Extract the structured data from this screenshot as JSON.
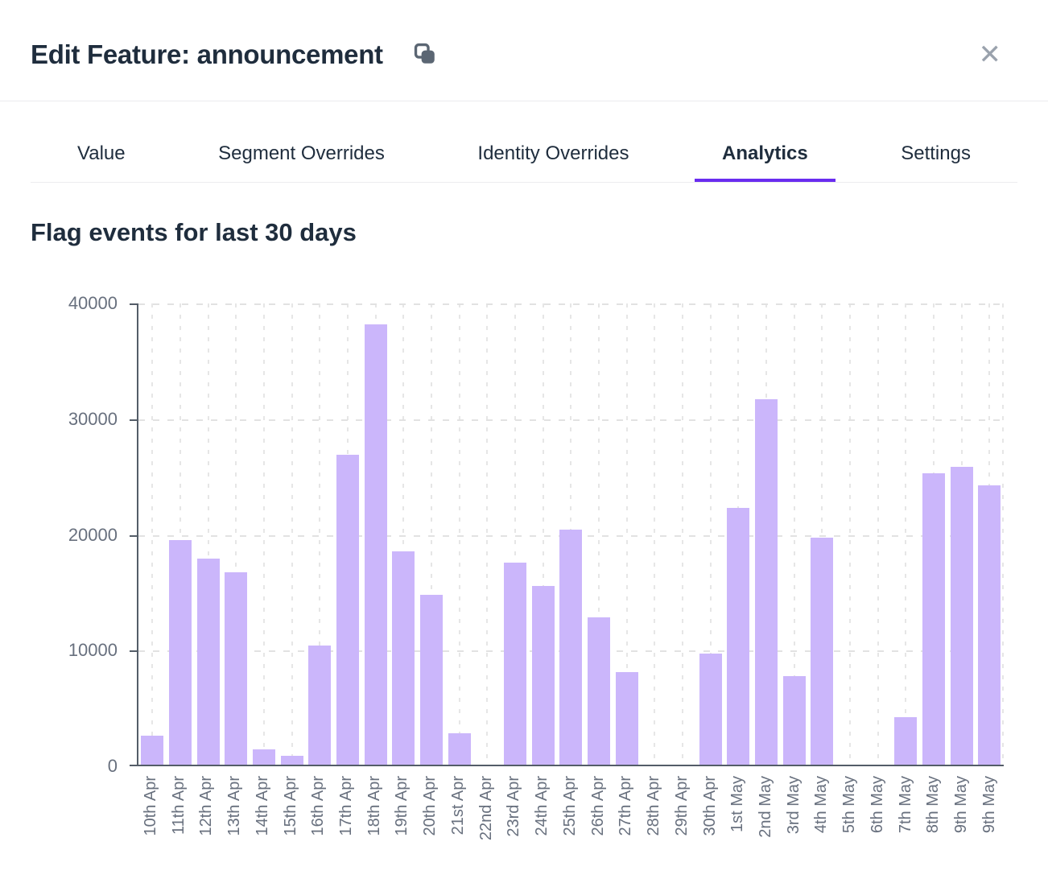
{
  "header": {
    "title": "Edit Feature: announcement"
  },
  "icons": {
    "copy": "copy-icon",
    "close_glyph": "✕"
  },
  "tabs": [
    {
      "label": "Value",
      "active": false
    },
    {
      "label": "Segment Overrides",
      "active": false
    },
    {
      "label": "Identity Overrides",
      "active": false
    },
    {
      "label": "Analytics",
      "active": true
    },
    {
      "label": "Settings",
      "active": false
    }
  ],
  "section": {
    "heading": "Flag events for last 30 days"
  },
  "colors": {
    "accent_underline": "#6a2cf0",
    "bar": "#cbb6fb",
    "axis": "#545d68",
    "tick_label": "#68707e",
    "grid": "#e2e2e2",
    "heading_text": "#1f2d3d",
    "icon_gray": "#5b6673",
    "close_gray": "#9aa2ad"
  },
  "chart_data": {
    "type": "bar",
    "title": "Flag events for last 30 days",
    "categories": [
      "10th Apr",
      "11th Apr",
      "12th Apr",
      "13th Apr",
      "14th Apr",
      "15th Apr",
      "16th Apr",
      "17th Apr",
      "18th Apr",
      "19th Apr",
      "20th Apr",
      "21st Apr",
      "22nd Apr",
      "23rd Apr",
      "24th Apr",
      "25th Apr",
      "26th Apr",
      "27th Apr",
      "28th Apr",
      "29th Apr",
      "30th Apr",
      "1st May",
      "2nd May",
      "3rd May",
      "4th May",
      "5th May",
      "6th May",
      "7th May",
      "8th May",
      "9th May",
      "9th May"
    ],
    "values": [
      2500,
      19500,
      17900,
      16700,
      1300,
      800,
      10300,
      26900,
      38200,
      18500,
      14700,
      2700,
      0,
      17500,
      15500,
      20400,
      12800,
      8000,
      0,
      0,
      9600,
      22300,
      31700,
      7700,
      19700,
      0,
      0,
      4100,
      25300,
      25800,
      24200
    ],
    "xlabel": "",
    "ylabel": "",
    "ylim": [
      0,
      40000
    ],
    "yticks": [
      0,
      10000,
      20000,
      30000,
      40000
    ],
    "grid": "dashed-both-axes",
    "legend": "none"
  }
}
